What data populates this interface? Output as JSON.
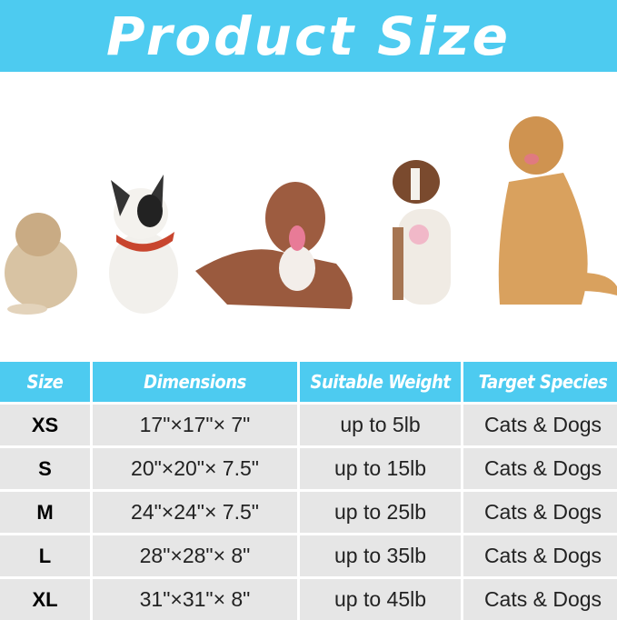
{
  "title": "Product Size",
  "colors": {
    "accent": "#4dcbf0",
    "cell": "#e6e6e6"
  },
  "photo": {
    "subjects": [
      "havanese-dog",
      "french-bulldog",
      "pitbull",
      "australian-shepherd",
      "golden-retriever"
    ]
  },
  "table": {
    "headers": [
      "Size",
      "Dimensions",
      "Suitable Weight",
      "Target Species"
    ],
    "rows": [
      [
        "XS",
        "17\"×17\"× 7\"",
        "up to 5lb",
        "Cats & Dogs"
      ],
      [
        "S",
        "20\"×20\"× 7.5\"",
        "up to 15lb",
        "Cats & Dogs"
      ],
      [
        "M",
        "24\"×24\"× 7.5\"",
        "up to 25lb",
        "Cats & Dogs"
      ],
      [
        "L",
        "28\"×28\"× 8\"",
        "up to 35lb",
        "Cats & Dogs"
      ],
      [
        "XL",
        "31\"×31\"× 8\"",
        "up to 45lb",
        "Cats & Dogs"
      ]
    ]
  }
}
